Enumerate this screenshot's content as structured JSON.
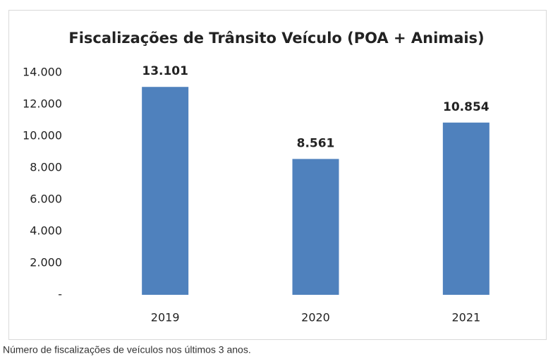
{
  "chart_data": {
    "type": "bar",
    "title": "Fiscalizações de Trânsito Veículo (POA + Animais)",
    "categories": [
      "2019",
      "2020",
      "2021"
    ],
    "values": [
      13101,
      8561,
      10854
    ],
    "value_labels": [
      "13.101",
      "8.561",
      "10.854"
    ],
    "color": "#4f81bd",
    "ylim": [
      0,
      14000
    ],
    "yticks": [
      {
        "value": 0,
        "label": "-"
      },
      {
        "value": 2000,
        "label": "2.000"
      },
      {
        "value": 4000,
        "label": "4.000"
      },
      {
        "value": 6000,
        "label": "6.000"
      },
      {
        "value": 8000,
        "label": "8.000"
      },
      {
        "value": 10000,
        "label": "10.000"
      },
      {
        "value": 12000,
        "label": "12.000"
      },
      {
        "value": 14000,
        "label": "14.000"
      }
    ],
    "grid": false,
    "caption": "Número de fiscalizações de veículos nos últimos 3 anos."
  }
}
